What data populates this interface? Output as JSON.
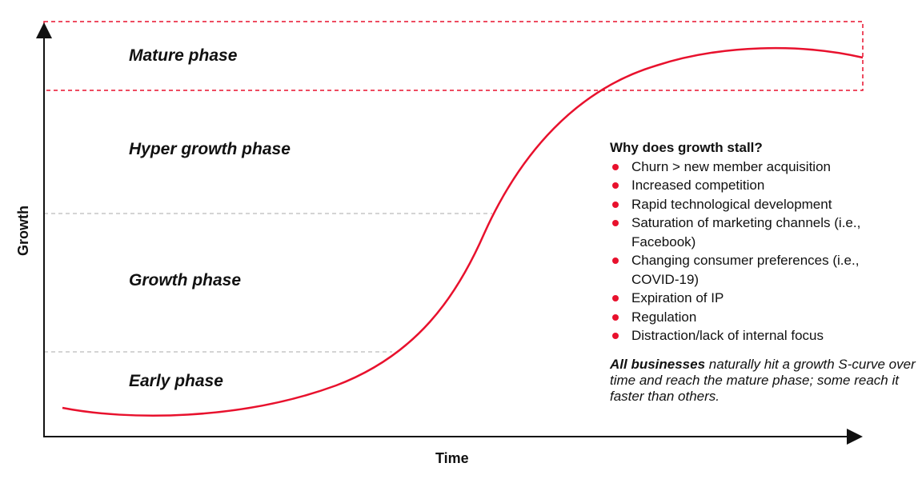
{
  "axes": {
    "y_label": "Growth",
    "x_label": "Time"
  },
  "phases": [
    "Mature phase",
    "Hyper growth phase",
    "Growth phase",
    "Early phase"
  ],
  "stall": {
    "title": "Why does growth stall?",
    "items": [
      "Churn > new member acquisition",
      "Increased competition",
      "Rapid technological development",
      "Saturation of marketing channels (i.e., Facebook)",
      "Changing consumer preferences (i.e., COVID-19)",
      "Expiration of IP",
      "Regulation",
      "Distraction/lack of internal focus"
    ]
  },
  "note": {
    "emphasis": "All businesses",
    "text": "naturally hit a growth S-curve over time and reach the mature phase; some reach it faster than others."
  }
}
